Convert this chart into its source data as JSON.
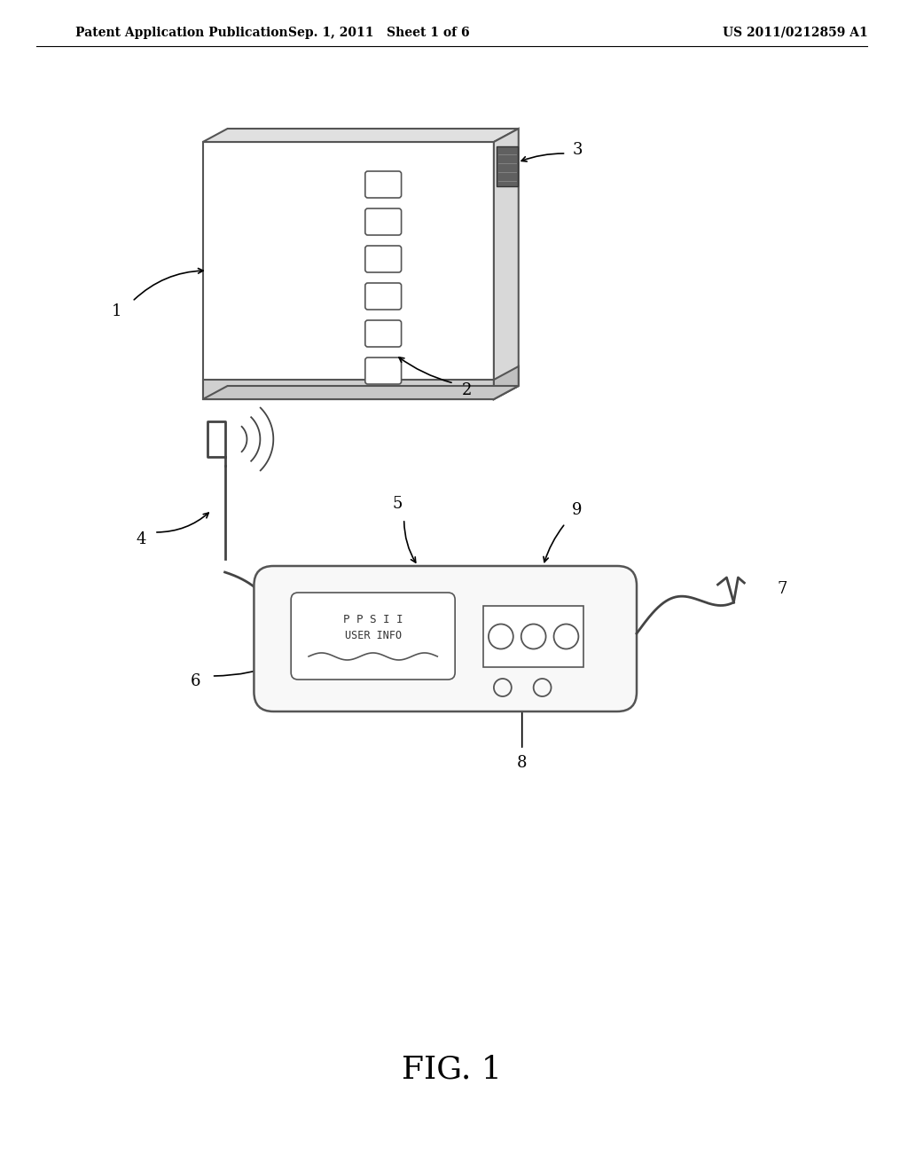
{
  "bg_color": "#ffffff",
  "header_left": "Patent Application Publication",
  "header_mid": "Sep. 1, 2011   Sheet 1 of 6",
  "header_right": "US 2011/0212859 A1",
  "fig_label": "FIG. 1"
}
